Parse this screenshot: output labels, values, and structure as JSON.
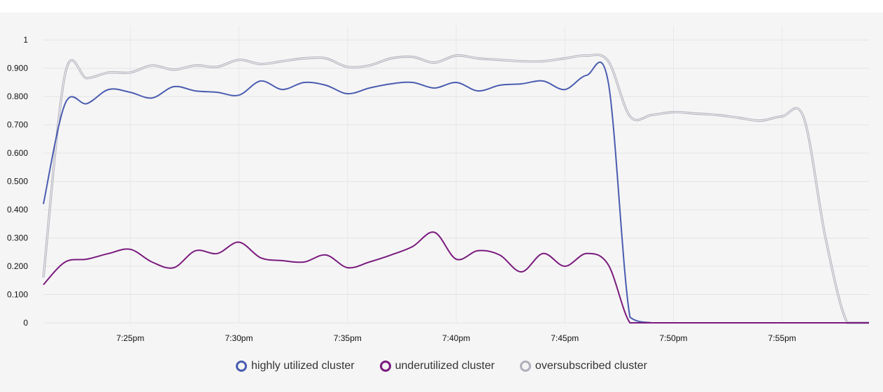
{
  "chart_data": {
    "type": "line",
    "x_unit": "time",
    "x_ticks": [
      "7:25pm",
      "7:30pm",
      "7:35pm",
      "7:40pm",
      "7:45pm",
      "7:50pm",
      "7:55pm"
    ],
    "y_ticks": [
      "0",
      "0.100",
      "0.200",
      "0.300",
      "0.400",
      "0.500",
      "0.600",
      "0.700",
      "0.800",
      "0.900",
      "1"
    ],
    "ylim": [
      0,
      1.05
    ],
    "x_range": [
      "7:21pm",
      "7:59pm"
    ],
    "grid": true,
    "legend_position": "bottom-center",
    "x": [
      "7:21pm",
      "7:22pm",
      "7:23pm",
      "7:24pm",
      "7:25pm",
      "7:26pm",
      "7:27pm",
      "7:28pm",
      "7:29pm",
      "7:30pm",
      "7:31pm",
      "7:32pm",
      "7:33pm",
      "7:34pm",
      "7:35pm",
      "7:36pm",
      "7:37pm",
      "7:38pm",
      "7:39pm",
      "7:40pm",
      "7:41pm",
      "7:42pm",
      "7:43pm",
      "7:44pm",
      "7:45pm",
      "7:46pm",
      "7:47pm",
      "7:48pm",
      "7:49pm",
      "7:50pm",
      "7:51pm",
      "7:52pm",
      "7:53pm",
      "7:54pm",
      "7:55pm",
      "7:56pm",
      "7:57pm",
      "7:58pm",
      "7:59pm"
    ],
    "series": [
      {
        "name": "highly utilized cluster",
        "color": "#4a5cb0",
        "values": [
          0.42,
          0.775,
          0.775,
          0.825,
          0.815,
          0.795,
          0.835,
          0.82,
          0.815,
          0.805,
          0.855,
          0.825,
          0.85,
          0.84,
          0.81,
          0.83,
          0.845,
          0.85,
          0.83,
          0.85,
          0.82,
          0.84,
          0.845,
          0.855,
          0.825,
          0.875,
          0.85,
          0.02,
          0,
          0,
          0,
          0,
          0,
          0,
          0,
          0,
          0,
          0,
          0
        ]
      },
      {
        "name": "underutilized cluster",
        "color": "#7a1a7e",
        "values": [
          0.135,
          0.215,
          0.225,
          0.245,
          0.26,
          0.215,
          0.195,
          0.255,
          0.245,
          0.285,
          0.23,
          0.22,
          0.215,
          0.24,
          0.195,
          0.215,
          0.24,
          0.27,
          0.32,
          0.225,
          0.255,
          0.24,
          0.18,
          0.245,
          0.2,
          0.245,
          0.205,
          0,
          0,
          0,
          0,
          0,
          0,
          0,
          0,
          0,
          0,
          0,
          0
        ]
      },
      {
        "name": "oversubscribed cluster",
        "color": "#b0b0bc",
        "values": [
          0.16,
          0.88,
          0.865,
          0.885,
          0.885,
          0.91,
          0.895,
          0.91,
          0.905,
          0.93,
          0.915,
          0.925,
          0.935,
          0.935,
          0.905,
          0.91,
          0.935,
          0.94,
          0.92,
          0.945,
          0.935,
          0.93,
          0.925,
          0.925,
          0.935,
          0.945,
          0.925,
          0.73,
          0.735,
          0.745,
          0.74,
          0.735,
          0.725,
          0.715,
          0.73,
          0.725,
          0.3,
          0,
          0
        ]
      }
    ]
  }
}
